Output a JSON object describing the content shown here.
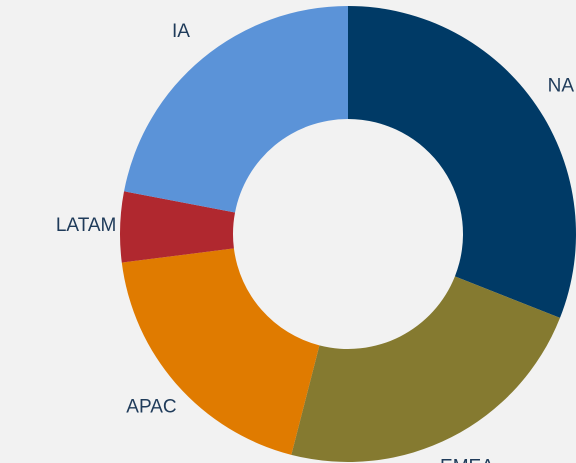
{
  "chart_data": {
    "type": "donut",
    "categories": [
      "NA",
      "EMEA",
      "APAC",
      "LATAM",
      "IA"
    ],
    "values": [
      31,
      23,
      19,
      5,
      22
    ],
    "colors": [
      "#003a66",
      "#857a30",
      "#e07b00",
      "#b0282f",
      "#5b93d8"
    ]
  }
}
